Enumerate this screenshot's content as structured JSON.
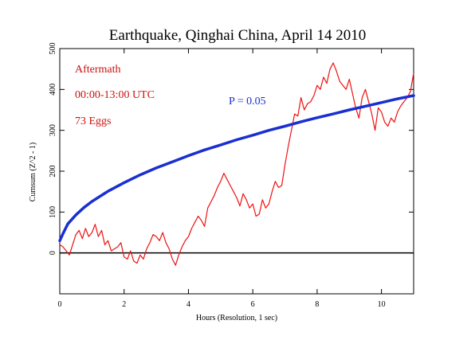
{
  "chart_data": {
    "type": "line",
    "title": "Earthquake, Qinghai China, April 14 2010",
    "xlabel": "Hours (Resolution, 1 sec)",
    "ylabel": "Cumsum (Z^2 - 1)",
    "xlim": [
      0,
      11
    ],
    "ylim": [
      -100,
      500
    ],
    "x_ticks": [
      0,
      2,
      4,
      6,
      8,
      10
    ],
    "y_ticks": [
      0,
      100,
      200,
      300,
      400,
      500
    ],
    "grid": false,
    "annotations": [
      {
        "text": "Aftermath",
        "color": "#cc1111"
      },
      {
        "text": "00:00-13:00 UTC",
        "color": "#cc1111"
      },
      {
        "text": "73 Eggs",
        "color": "#cc1111"
      },
      {
        "text": "P = 0.05",
        "color": "#1a2fd0"
      }
    ],
    "reference_line": {
      "y": 0,
      "color": "#000000"
    },
    "series": [
      {
        "color": "#ee1111",
        "x": [
          0,
          0.1,
          0.2,
          0.3,
          0.4,
          0.5,
          0.6,
          0.7,
          0.8,
          0.9,
          1.0,
          1.1,
          1.2,
          1.3,
          1.4,
          1.5,
          1.6,
          1.7,
          1.8,
          1.9,
          2.0,
          2.1,
          2.2,
          2.3,
          2.4,
          2.5,
          2.6,
          2.7,
          2.8,
          2.9,
          3.0,
          3.1,
          3.2,
          3.3,
          3.4,
          3.5,
          3.6,
          3.7,
          3.8,
          3.9,
          4.0,
          4.1,
          4.2,
          4.3,
          4.4,
          4.5,
          4.6,
          4.7,
          4.8,
          4.9,
          5.0,
          5.1,
          5.2,
          5.3,
          5.4,
          5.5,
          5.6,
          5.7,
          5.8,
          5.9,
          6.0,
          6.1,
          6.2,
          6.3,
          6.4,
          6.5,
          6.6,
          6.7,
          6.8,
          6.9,
          7.0,
          7.1,
          7.2,
          7.3,
          7.4,
          7.5,
          7.6,
          7.7,
          7.8,
          7.9,
          8.0,
          8.1,
          8.2,
          8.3,
          8.4,
          8.5,
          8.6,
          8.7,
          8.8,
          8.9,
          9.0,
          9.1,
          9.2,
          9.3,
          9.4,
          9.5,
          9.6,
          9.7,
          9.8,
          9.9,
          10.0,
          10.1,
          10.2,
          10.3,
          10.4,
          10.5,
          10.6,
          10.7,
          10.8,
          10.9,
          11.0
        ],
        "y": [
          20,
          15,
          5,
          -5,
          20,
          45,
          55,
          35,
          60,
          40,
          50,
          70,
          40,
          55,
          20,
          30,
          5,
          10,
          15,
          25,
          -10,
          -15,
          5,
          -20,
          -25,
          -5,
          -15,
          10,
          25,
          45,
          40,
          30,
          50,
          25,
          10,
          -15,
          -30,
          -5,
          15,
          30,
          40,
          60,
          75,
          90,
          80,
          65,
          110,
          125,
          140,
          160,
          175,
          195,
          180,
          165,
          150,
          135,
          115,
          145,
          130,
          110,
          120,
          90,
          95,
          130,
          110,
          120,
          150,
          175,
          160,
          165,
          215,
          260,
          300,
          340,
          335,
          380,
          350,
          365,
          370,
          385,
          410,
          400,
          430,
          415,
          450,
          465,
          445,
          420,
          410,
          400,
          425,
          390,
          355,
          330,
          380,
          400,
          370,
          340,
          300,
          355,
          345,
          320,
          310,
          330,
          320,
          345,
          360,
          370,
          380,
          395,
          440
        ]
      },
      {
        "name": "P = 0.05",
        "color": "#1a2fd0",
        "x": [
          0,
          0.1,
          0.25,
          0.5,
          0.75,
          1.0,
          1.5,
          2.0,
          2.5,
          3.0,
          3.5,
          4.0,
          4.5,
          5.0,
          5.5,
          6.0,
          6.5,
          7.0,
          7.5,
          8.0,
          8.5,
          9.0,
          9.5,
          10.0,
          10.5,
          11.0
        ],
        "y": [
          30,
          47,
          71,
          93,
          111,
          126,
          151,
          172,
          191,
          208,
          223,
          238,
          252,
          264,
          277,
          288,
          300,
          310,
          321,
          331,
          340,
          350,
          359,
          368,
          377,
          385
        ]
      }
    ]
  }
}
